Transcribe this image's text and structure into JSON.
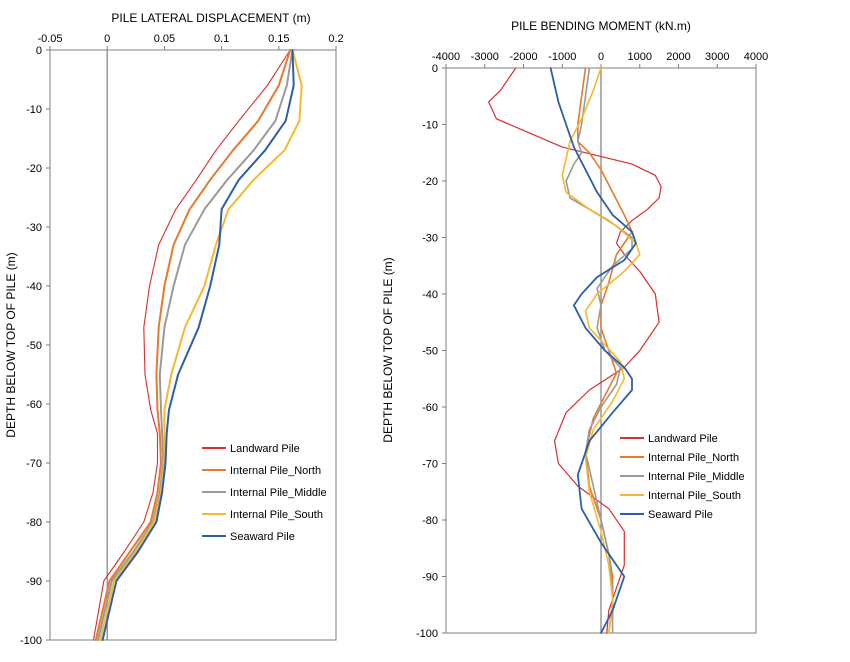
{
  "chart_data": [
    {
      "type": "line",
      "title": "",
      "xlabel": "PILE LATERAL DISPLACEMENT (m)",
      "ylabel": "DEPTH BELOW TOP OF PILE (m)",
      "xlim": [
        -0.05,
        0.2
      ],
      "ylim": [
        -100,
        0
      ],
      "xticks": [
        -0.05,
        0,
        0.05,
        0.1,
        0.15,
        0.2
      ],
      "xtick_labels": [
        "-0.05",
        "0",
        "0.05",
        "0.1",
        "0.15",
        "0.2"
      ],
      "yticks": [
        0,
        -10,
        -20,
        -30,
        -40,
        -50,
        -60,
        -70,
        -80,
        -90,
        -100
      ],
      "ytick_labels": [
        "0",
        "-10",
        "-20",
        "-30",
        "-40",
        "-50",
        "-60",
        "-70",
        "-80",
        "-90",
        "-100"
      ],
      "x_axis_position": "top",
      "grid": false,
      "legend_position": "lower-right",
      "series": [
        {
          "name": "Landward Pile",
          "color": "#d62f2f",
          "width": 1.1,
          "x": [
            0.16,
            0.14,
            0.115,
            0.095,
            0.078,
            0.06,
            0.045,
            0.037,
            0.032,
            0.033,
            0.038,
            0.044,
            0.044,
            0.04,
            0.032,
            0.015,
            -0.003,
            -0.012
          ],
          "y": [
            0,
            -6,
            -12,
            -17,
            -22,
            -27,
            -33,
            -40,
            -47,
            -55,
            -61,
            -65,
            -70,
            -75,
            -80,
            -85,
            -90,
            -100
          ]
        },
        {
          "name": "Internal Pile_North",
          "color": "#e67a2e",
          "width": 2,
          "x": [
            0.16,
            0.15,
            0.132,
            0.11,
            0.09,
            0.072,
            0.058,
            0.05,
            0.045,
            0.043,
            0.044,
            0.046,
            0.047,
            0.044,
            0.038,
            0.02,
            0.002,
            -0.01
          ],
          "y": [
            0,
            -6,
            -12,
            -17,
            -22,
            -27,
            -33,
            -40,
            -47,
            -55,
            -61,
            -65,
            -70,
            -75,
            -80,
            -85,
            -90,
            -100
          ]
        },
        {
          "name": "Internal Pile_Middle",
          "color": "#9a9a9a",
          "width": 2,
          "x": [
            0.162,
            0.157,
            0.147,
            0.128,
            0.105,
            0.085,
            0.068,
            0.058,
            0.05,
            0.046,
            0.047,
            0.048,
            0.049,
            0.046,
            0.04,
            0.023,
            0.004,
            -0.008
          ],
          "y": [
            0,
            -6,
            -12,
            -17,
            -22,
            -27,
            -33,
            -40,
            -47,
            -55,
            -61,
            -65,
            -70,
            -75,
            -80,
            -85,
            -90,
            -100
          ]
        },
        {
          "name": "Internal Pile_South",
          "color": "#f5b82e",
          "width": 2,
          "x": [
            0.162,
            0.17,
            0.168,
            0.155,
            0.128,
            0.106,
            0.095,
            0.085,
            0.068,
            0.056,
            0.05,
            0.05,
            0.05,
            0.047,
            0.041,
            0.025,
            0.006,
            -0.006
          ],
          "y": [
            0,
            -6,
            -12,
            -17,
            -22,
            -27,
            -33,
            -40,
            -47,
            -55,
            -61,
            -65,
            -70,
            -75,
            -80,
            -85,
            -90,
            -100
          ]
        },
        {
          "name": "Seaward Pile",
          "color": "#2c5fa6",
          "width": 2,
          "x": [
            0.162,
            0.163,
            0.156,
            0.138,
            0.115,
            0.1,
            0.098,
            0.09,
            0.08,
            0.062,
            0.054,
            0.052,
            0.051,
            0.048,
            0.043,
            0.027,
            0.008,
            -0.004
          ],
          "y": [
            0,
            -6,
            -12,
            -17,
            -22,
            -27,
            -33,
            -40,
            -47,
            -55,
            -61,
            -65,
            -70,
            -75,
            -80,
            -85,
            -90,
            -100
          ]
        }
      ]
    },
    {
      "type": "line",
      "title": "PILE BENDING MOMENT (kN.m)",
      "xlabel": "",
      "ylabel": "DEPTH BELOW TOP OF PILE (m)",
      "xlim": [
        -4000,
        4000
      ],
      "ylim": [
        -100,
        0
      ],
      "xticks": [
        -4000,
        -3000,
        -2000,
        -1000,
        0,
        1000,
        2000,
        3000,
        4000
      ],
      "xtick_labels": [
        "-4000",
        "-3000",
        "-2000",
        "-1000",
        "0",
        "1000",
        "2000",
        "3000",
        "4000"
      ],
      "yticks": [
        0,
        -10,
        -20,
        -30,
        -40,
        -50,
        -60,
        -70,
        -80,
        -90,
        -100
      ],
      "ytick_labels": [
        "0",
        "-10",
        "-20",
        "-30",
        "-40",
        "-50",
        "-60",
        "-70",
        "-80",
        "-90",
        "-100"
      ],
      "x_axis_position": "top",
      "grid": false,
      "legend_position": "lower-right",
      "series": [
        {
          "name": "Landward Pile",
          "color": "#d62f2f",
          "width": 1.2,
          "x": [
            -2200,
            -2600,
            -2900,
            -2700,
            -1000,
            800,
            1400,
            1550,
            1500,
            1200,
            800,
            500,
            400,
            600,
            1000,
            1400,
            1500,
            1000,
            600,
            -300,
            -900,
            -1200,
            -1100,
            -600,
            200,
            600,
            600,
            400,
            200,
            150
          ],
          "y": [
            0,
            -4,
            -6,
            -9,
            -14,
            -17,
            -19,
            -21,
            -23,
            -25,
            -27,
            -29,
            -31,
            -33,
            -36,
            -40,
            -45,
            -50,
            -53,
            -57,
            -61,
            -66,
            -70,
            -74,
            -78,
            -82,
            -88,
            -92,
            -96,
            -100
          ]
        },
        {
          "name": "Internal Pile_North",
          "color": "#e67a2e",
          "width": 1.6,
          "x": [
            -400,
            -500,
            -600,
            -600,
            -300,
            0,
            300,
            600,
            800,
            400,
            200,
            0,
            0,
            200,
            400,
            100,
            -200,
            -400,
            -300,
            0,
            200,
            300,
            300,
            200
          ],
          "y": [
            0,
            -5,
            -10,
            -13,
            -15,
            -18,
            -22,
            -26,
            -29,
            -33,
            -38,
            -42,
            -46,
            -50,
            -54,
            -58,
            -62,
            -68,
            -74,
            -80,
            -86,
            -90,
            -95,
            -100
          ]
        },
        {
          "name": "Internal Pile_Middle",
          "color": "#9a9a9a",
          "width": 1.6,
          "x": [
            -300,
            -400,
            -500,
            -600,
            -500,
            -700,
            -900,
            -800,
            200,
            800,
            800,
            300,
            -100,
            0,
            -100,
            100,
            500,
            400,
            0,
            -300,
            -400,
            -200,
            0,
            200,
            300,
            300
          ],
          "y": [
            0,
            -5,
            -10,
            -13,
            -15,
            -17,
            -20,
            -23,
            -27,
            -30,
            -32,
            -35,
            -39,
            -42,
            -46,
            -50,
            -53,
            -56,
            -60,
            -64,
            -68,
            -74,
            -80,
            -86,
            -92,
            -100
          ]
        },
        {
          "name": "Internal Pile_South",
          "color": "#f5b82e",
          "width": 1.6,
          "x": [
            0,
            -200,
            -500,
            -800,
            -900,
            -1000,
            -900,
            -300,
            400,
            900,
            1000,
            600,
            -100,
            -400,
            -300,
            100,
            500,
            600,
            300,
            -200,
            -400,
            -300,
            0,
            200,
            300,
            200
          ],
          "y": [
            0,
            -4,
            -9,
            -13,
            -16,
            -19,
            -22,
            -25,
            -28,
            -31,
            -33,
            -36,
            -40,
            -43,
            -46,
            -49,
            -52,
            -55,
            -59,
            -64,
            -69,
            -75,
            -82,
            -88,
            -94,
            -100
          ]
        },
        {
          "name": "Seaward Pile",
          "color": "#2c5fa6",
          "width": 1.8,
          "x": [
            -1300,
            -1100,
            -900,
            -700,
            -400,
            -100,
            300,
            800,
            900,
            600,
            -100,
            -500,
            -700,
            -400,
            100,
            600,
            800,
            800,
            300,
            -300,
            -600,
            -500,
            0,
            600,
            300,
            0
          ],
          "y": [
            0,
            -6,
            -10,
            -14,
            -18,
            -22,
            -26,
            -29,
            -31,
            -34,
            -37,
            -40,
            -42,
            -46,
            -50,
            -53,
            -55,
            -57,
            -61,
            -66,
            -72,
            -78,
            -84,
            -90,
            -96,
            -100
          ]
        }
      ]
    }
  ]
}
